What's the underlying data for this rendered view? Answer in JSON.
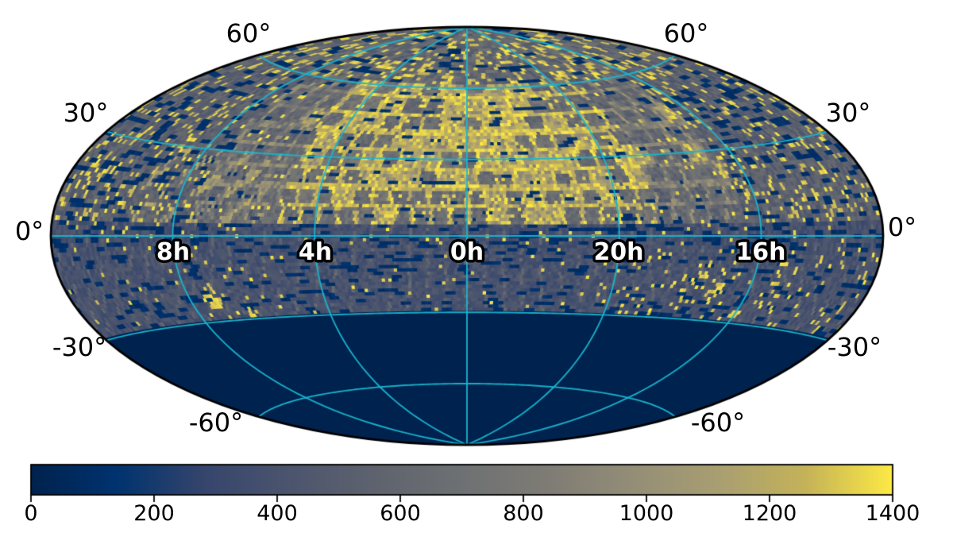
{
  "chart_data": {
    "type": "heatmap",
    "variant": "all-sky survey coverage map (healpix-style cells)",
    "projection": "hammer",
    "coordinate_system": "equatorial (right ascension hours / declination degrees)",
    "colormap": "cividis",
    "value_range": [
      0,
      1400
    ],
    "colorbar_ticks": [
      0,
      200,
      400,
      600,
      800,
      1000,
      1200,
      1400
    ],
    "graticule": {
      "color": "#19b5cf",
      "declination_lines_deg": [
        -60,
        -30,
        0,
        30,
        60
      ],
      "meridian_lines_deg": [
        -120,
        -60,
        0,
        60,
        120
      ]
    },
    "dec_labels": [
      {
        "text": "60°",
        "dec": 60,
        "side": "left"
      },
      {
        "text": "30°",
        "dec": 30,
        "side": "left"
      },
      {
        "text": "0°",
        "dec": 0,
        "side": "left"
      },
      {
        "text": "-30°",
        "dec": -30,
        "side": "left"
      },
      {
        "text": "-60°",
        "dec": -60,
        "side": "left"
      },
      {
        "text": "60°",
        "dec": 60,
        "side": "right"
      },
      {
        "text": "30°",
        "dec": 30,
        "side": "right"
      },
      {
        "text": "0°",
        "dec": 0,
        "side": "right"
      },
      {
        "text": "-30°",
        "dec": -30,
        "side": "right"
      },
      {
        "text": "-60°",
        "dec": -60,
        "side": "right"
      }
    ],
    "ra_labels": [
      {
        "text": "8h",
        "lon_deg": 120
      },
      {
        "text": "4h",
        "lon_deg": 60
      },
      {
        "text": "0h",
        "lon_deg": 0
      },
      {
        "text": "20h",
        "lon_deg": -60
      },
      {
        "text": "16h",
        "lon_deg": -120
      }
    ],
    "colors": {
      "background": "#ffffff",
      "outline": "#000000",
      "unobserved": "#00224e",
      "cividis_stops": [
        [
          0.0,
          "#00224e"
        ],
        [
          0.1,
          "#00336f"
        ],
        [
          0.2,
          "#35456c"
        ],
        [
          0.3,
          "#4c556e"
        ],
        [
          0.4,
          "#5f636e"
        ],
        [
          0.5,
          "#6e7173"
        ],
        [
          0.6,
          "#7f7c75"
        ],
        [
          0.7,
          "#948e77"
        ],
        [
          0.8,
          "#a99f72"
        ],
        [
          0.9,
          "#c5b358"
        ],
        [
          1.0,
          "#fdea45"
        ]
      ]
    },
    "map_model": {
      "comment": "approximate spatial model of observation counts read from the image",
      "cell_deg": 1.3,
      "unobserved": {
        "dec_max": -29.2,
        "value": 0
      },
      "south_band": {
        "dec_min": -29.2,
        "dec_max": -4,
        "base": 400,
        "noise": 170,
        "dark_frac": 0.14,
        "column_step_deg": 7.3,
        "bright_frac_east": 0.022,
        "bright_frac_west": 0.06
      },
      "equator_band": {
        "dec_min": -4,
        "dec_max": 4,
        "base": 385,
        "dark_frac": 0.2
      },
      "north_fields": {
        "dec_min": 4,
        "dec_max": 62,
        "lon_abs_max": 112,
        "field_step_deg": 7.4,
        "border_value": 1250,
        "interior_base": 545,
        "yellow_block_prob": 0.22,
        "yellow_block_prob_core": 0.62,
        "core": {
          "lon_abs_max": 50,
          "dec_min": 24,
          "dec_max": 58
        }
      },
      "north_speckle": {
        "base": 545,
        "dark_frac": 0.15,
        "bright_frac": 0.16
      },
      "polar": {
        "dec_min": 62,
        "base": 600,
        "dark_frac": 0.13,
        "bright_frac": 0.24
      },
      "diag_streak_zone": {
        "lon_min": 82,
        "lon_max": 140,
        "dec_max": 30,
        "period_deg": 13
      },
      "yellow_clumps_lon_dec_radius": [
        [
          110,
          -21,
          4.5
        ],
        [
          95,
          -27,
          2.5
        ],
        [
          -97,
          -12,
          3
        ],
        [
          -105,
          -20,
          3.5
        ],
        [
          -120,
          -25,
          3
        ],
        [
          -133,
          -15,
          3
        ]
      ]
    }
  }
}
